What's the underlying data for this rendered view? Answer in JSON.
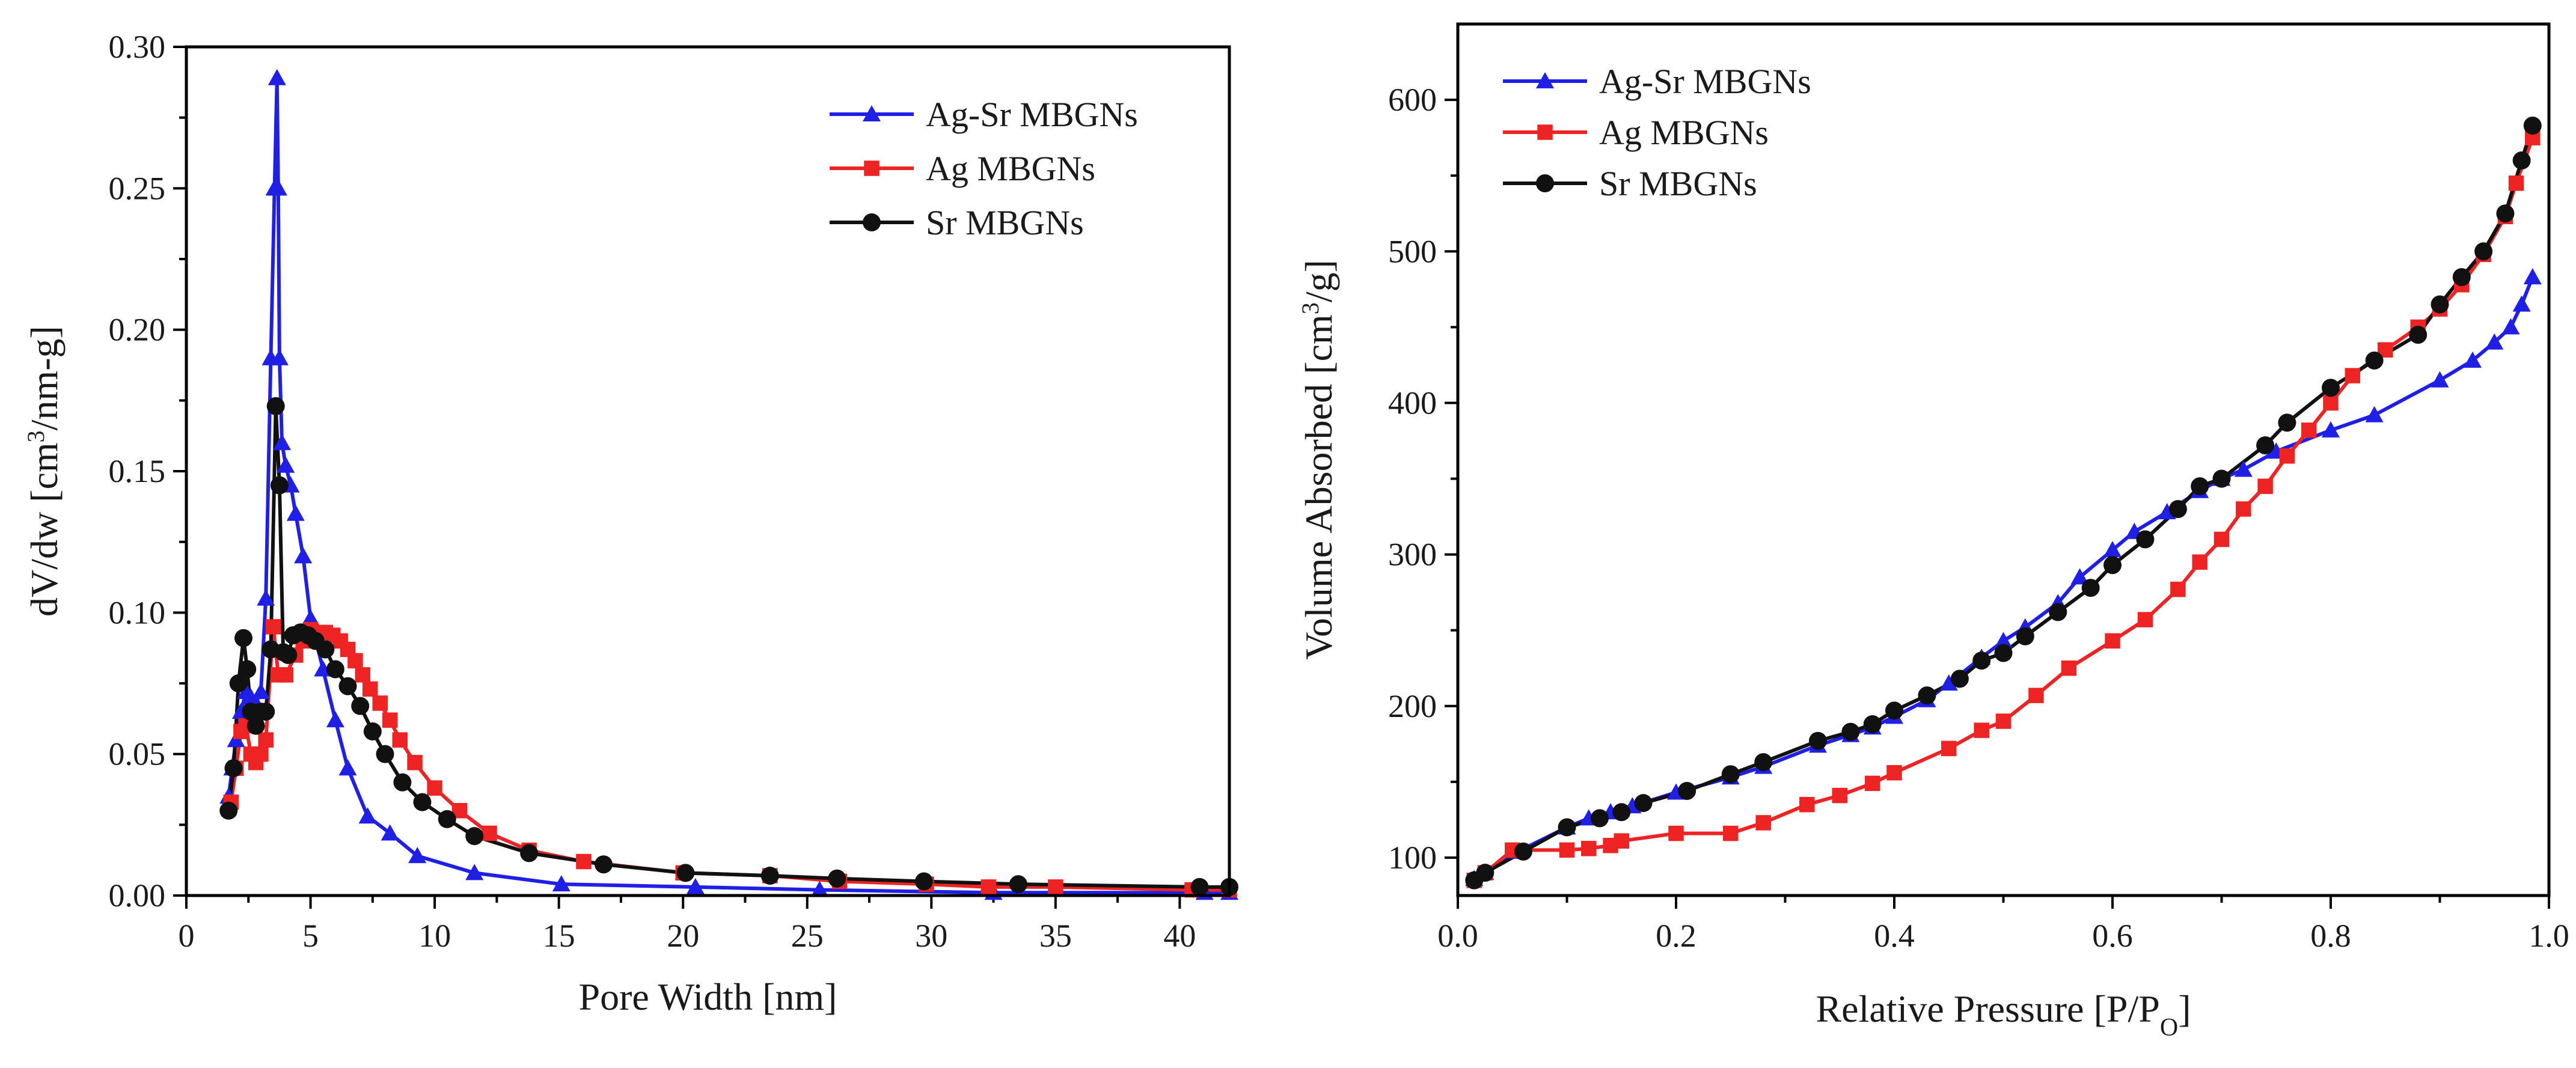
{
  "chart_data": [
    {
      "type": "line",
      "xlabel": "Pore Width [nm]",
      "ylabel_main": "dV/dw [cm",
      "ylabel_sup": "3",
      "ylabel_tail": "/nm-g]",
      "xlim": [
        0,
        42
      ],
      "ylim": [
        0,
        0.3
      ],
      "xticks": [
        0,
        5,
        10,
        15,
        20,
        25,
        30,
        35,
        40
      ],
      "xtick_labels": [
        "0",
        "5",
        "10",
        "15",
        "20",
        "25",
        "30",
        "35",
        "40"
      ],
      "yticks": [
        0,
        0.05,
        0.1,
        0.15,
        0.2,
        0.25,
        0.3
      ],
      "ytick_labels": [
        "0.00",
        "0.05",
        "0.10",
        "0.15",
        "0.20",
        "0.25",
        "0.30"
      ],
      "legend_position": "top-right",
      "series": [
        {
          "name": "Ag-Sr MBGNs",
          "color": "#1f1fe6",
          "marker": "triangle",
          "x": [
            1.7,
            1.85,
            2.0,
            2.2,
            2.4,
            2.6,
            2.8,
            3.0,
            3.2,
            3.4,
            3.55,
            3.65,
            3.7,
            3.75,
            3.85,
            4.0,
            4.2,
            4.4,
            4.7,
            5.0,
            5.5,
            6.0,
            6.5,
            7.3,
            8.2,
            9.3,
            11.6,
            15.1,
            20.5,
            25.5,
            32.5,
            41.0,
            42.0
          ],
          "y": [
            0.035,
            0.045,
            0.055,
            0.065,
            0.072,
            0.07,
            0.068,
            0.072,
            0.105,
            0.19,
            0.25,
            0.289,
            0.25,
            0.19,
            0.16,
            0.152,
            0.145,
            0.135,
            0.12,
            0.098,
            0.08,
            0.062,
            0.045,
            0.028,
            0.022,
            0.014,
            0.008,
            0.004,
            0.003,
            0.002,
            0.001,
            0.001,
            0.001
          ]
        },
        {
          "name": "Ag MBGNs",
          "color": "#ee2424",
          "marker": "square",
          "x": [
            1.8,
            2.0,
            2.2,
            2.4,
            2.6,
            2.8,
            3.0,
            3.2,
            3.5,
            3.7,
            4.0,
            4.4,
            4.7,
            5.0,
            5.3,
            5.6,
            5.9,
            6.2,
            6.5,
            6.8,
            7.1,
            7.4,
            7.8,
            8.2,
            8.6,
            9.2,
            10.0,
            11.0,
            12.2,
            13.8,
            16.0,
            20.0,
            23.5,
            26.3,
            29.8,
            32.3,
            35.0,
            40.5,
            42.0
          ],
          "y": [
            0.033,
            0.045,
            0.058,
            0.06,
            0.05,
            0.047,
            0.05,
            0.055,
            0.095,
            0.078,
            0.078,
            0.085,
            0.09,
            0.094,
            0.093,
            0.093,
            0.092,
            0.09,
            0.087,
            0.083,
            0.078,
            0.073,
            0.068,
            0.062,
            0.055,
            0.047,
            0.038,
            0.03,
            0.022,
            0.016,
            0.012,
            0.008,
            0.007,
            0.005,
            0.004,
            0.003,
            0.003,
            0.002,
            0.002
          ]
        },
        {
          "name": "Sr MBGNs",
          "color": "#111111",
          "marker": "circle",
          "x": [
            1.7,
            1.9,
            2.1,
            2.3,
            2.45,
            2.6,
            2.8,
            3.0,
            3.2,
            3.4,
            3.6,
            3.75,
            3.9,
            4.1,
            4.3,
            4.6,
            4.9,
            5.2,
            5.6,
            6.0,
            6.5,
            7.0,
            7.5,
            8.0,
            8.7,
            9.5,
            10.5,
            11.6,
            13.8,
            16.8,
            20.1,
            23.5,
            26.2,
            29.7,
            33.5,
            40.8,
            42.0
          ],
          "y": [
            0.03,
            0.045,
            0.075,
            0.091,
            0.08,
            0.065,
            0.06,
            0.065,
            0.065,
            0.087,
            0.173,
            0.145,
            0.086,
            0.085,
            0.092,
            0.093,
            0.092,
            0.09,
            0.087,
            0.08,
            0.074,
            0.067,
            0.058,
            0.05,
            0.04,
            0.033,
            0.027,
            0.021,
            0.015,
            0.011,
            0.008,
            0.007,
            0.006,
            0.005,
            0.004,
            0.003,
            0.003
          ]
        }
      ]
    },
    {
      "type": "line",
      "xlabel_main": "Relative Pressure [P/P",
      "xlabel_sub": "O",
      "xlabel_tail": "]",
      "ylabel_main": "Volume Absorbed [cm",
      "ylabel_sup": "3",
      "ylabel_tail": "/g]",
      "xlim": [
        0,
        1.0
      ],
      "ylim": [
        75,
        650
      ],
      "xticks": [
        0,
        0.2,
        0.4,
        0.6,
        0.8,
        1.0
      ],
      "xtick_labels": [
        "0.0",
        "0.2",
        "0.4",
        "0.6",
        "0.8",
        "1.0"
      ],
      "yticks": [
        100,
        200,
        300,
        400,
        500,
        600
      ],
      "ytick_labels": [
        "100",
        "200",
        "300",
        "400",
        "500",
        "600"
      ],
      "legend_position": "top-left",
      "series": [
        {
          "name": "Ag-Sr MBGNs",
          "color": "#1f1fe6",
          "marker": "triangle",
          "x": [
            0.015,
            0.025,
            0.055,
            0.1,
            0.12,
            0.14,
            0.16,
            0.2,
            0.25,
            0.28,
            0.33,
            0.36,
            0.38,
            0.4,
            0.43,
            0.45,
            0.48,
            0.5,
            0.52,
            0.55,
            0.57,
            0.6,
            0.62,
            0.65,
            0.68,
            0.7,
            0.72,
            0.75,
            0.8,
            0.84,
            0.9,
            0.93,
            0.95,
            0.965,
            0.975,
            0.985
          ],
          "y": [
            86,
            90,
            104,
            120,
            126,
            130,
            134,
            143,
            153,
            160,
            174,
            181,
            186,
            193,
            204,
            215,
            232,
            243,
            252,
            268,
            285,
            303,
            315,
            328,
            342,
            350,
            356,
            368,
            382,
            392,
            415,
            428,
            440,
            450,
            465,
            483
          ]
        },
        {
          "name": "Ag MBGNs",
          "color": "#ee2424",
          "marker": "square",
          "x": [
            0.015,
            0.025,
            0.05,
            0.1,
            0.12,
            0.14,
            0.15,
            0.2,
            0.25,
            0.28,
            0.32,
            0.35,
            0.38,
            0.4,
            0.45,
            0.48,
            0.5,
            0.53,
            0.56,
            0.6,
            0.63,
            0.66,
            0.68,
            0.7,
            0.72,
            0.74,
            0.76,
            0.78,
            0.8,
            0.82,
            0.85,
            0.88,
            0.9,
            0.92,
            0.94,
            0.96,
            0.97,
            0.985
          ],
          "y": [
            85,
            90,
            105,
            105,
            106,
            108,
            111,
            116,
            116,
            123,
            135,
            141,
            149,
            156,
            172,
            184,
            190,
            207,
            225,
            243,
            257,
            277,
            295,
            310,
            330,
            345,
            365,
            382,
            400,
            418,
            435,
            450,
            462,
            478,
            498,
            523,
            545,
            575
          ]
        },
        {
          "name": "Sr MBGNs",
          "color": "#111111",
          "marker": "circle",
          "x": [
            0.015,
            0.025,
            0.06,
            0.1,
            0.13,
            0.15,
            0.17,
            0.21,
            0.25,
            0.28,
            0.33,
            0.36,
            0.38,
            0.4,
            0.43,
            0.46,
            0.48,
            0.5,
            0.52,
            0.55,
            0.58,
            0.6,
            0.63,
            0.66,
            0.68,
            0.7,
            0.74,
            0.76,
            0.8,
            0.84,
            0.88,
            0.9,
            0.92,
            0.94,
            0.96,
            0.975,
            0.985
          ],
          "y": [
            85,
            90,
            104,
            120,
            126,
            130,
            136,
            144,
            155,
            163,
            177,
            183,
            188,
            197,
            207,
            218,
            230,
            235,
            246,
            262,
            278,
            293,
            310,
            330,
            345,
            350,
            372,
            387,
            410,
            428,
            445,
            465,
            483,
            500,
            525,
            560,
            583
          ]
        }
      ]
    }
  ]
}
